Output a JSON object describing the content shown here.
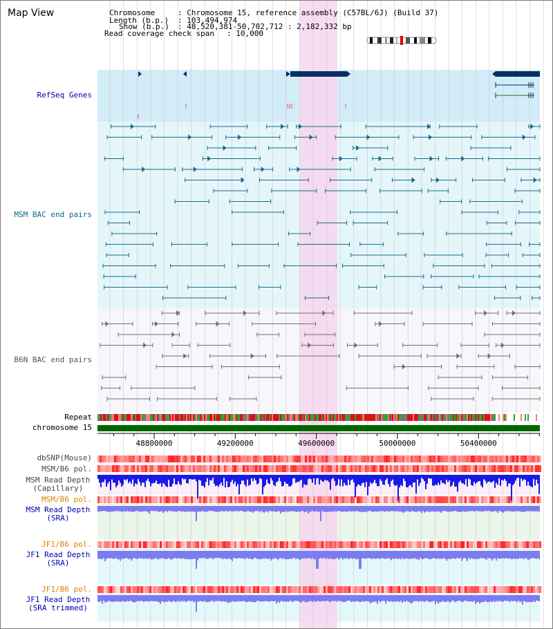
{
  "header": {
    "map_title": "Map View",
    "chrom_label": "Chromosome",
    "chrom_value": ": Chromosome 15, reference assembly (C57BL/6J) (Build 37)",
    "length_label": "Length (b.p.)",
    "length_value": ": 103,494,974",
    "show_label": "Show (b.p.)",
    "show_value": ": 48,520,381-50,702,712 : 2,182,332 bp",
    "span_label": "Read coverage check span",
    "span_value": ": 10,000"
  },
  "tracks": {
    "refseq": "RefSeq Genes",
    "msm_bac": "MSM BAC end pairs",
    "b6n_bac": "B6N BAC end pairs",
    "repeat": "Repeat",
    "chromosome": "chromosome 15",
    "dbsnp": "dbSNP(Mouse)",
    "msm_pol": "MSM/B6 pol.",
    "msm_depth_cap_1": "MSM Read Depth",
    "msm_depth_cap_2": "(Capillary)",
    "msm_pol_sra": "MSM/B6 pol.",
    "msm_depth_sra_1": "MSM Read Depth",
    "msm_depth_sra_2": "(SRA)",
    "jf1_pol": "JF1/B6 pol.",
    "jf1_depth_1": "JF1 Read Depth",
    "jf1_depth_2": "(SRA)",
    "jf1_pol_trim": "JF1/B6 pol.",
    "jf1_trim_1": "JF1 Read Depth",
    "jf1_trim_2": "(SRA trimmed)"
  },
  "axis": {
    "ticks": [
      "48800000",
      "49200000",
      "49600000",
      "50000000",
      "50400000"
    ],
    "start_bp": 48520381,
    "end_bp": 50702712
  },
  "colors": {
    "refseq_bg": "#d2ecf8",
    "msm_bg": "#e4f6fa",
    "b6n_bg": "#f6f6fb",
    "highlight": "#f7d6ee",
    "gene": "#06305e",
    "msm_feature": "#196a88",
    "b6n_feature": "#707070",
    "chrom_bar": "#006600",
    "label_blue": "#0000aa",
    "label_orange": "#e08000",
    "label_teal": "#006a8a",
    "depth_blue": "#1a1ae6",
    "depth_lavender": "#7c7cf0"
  }
}
